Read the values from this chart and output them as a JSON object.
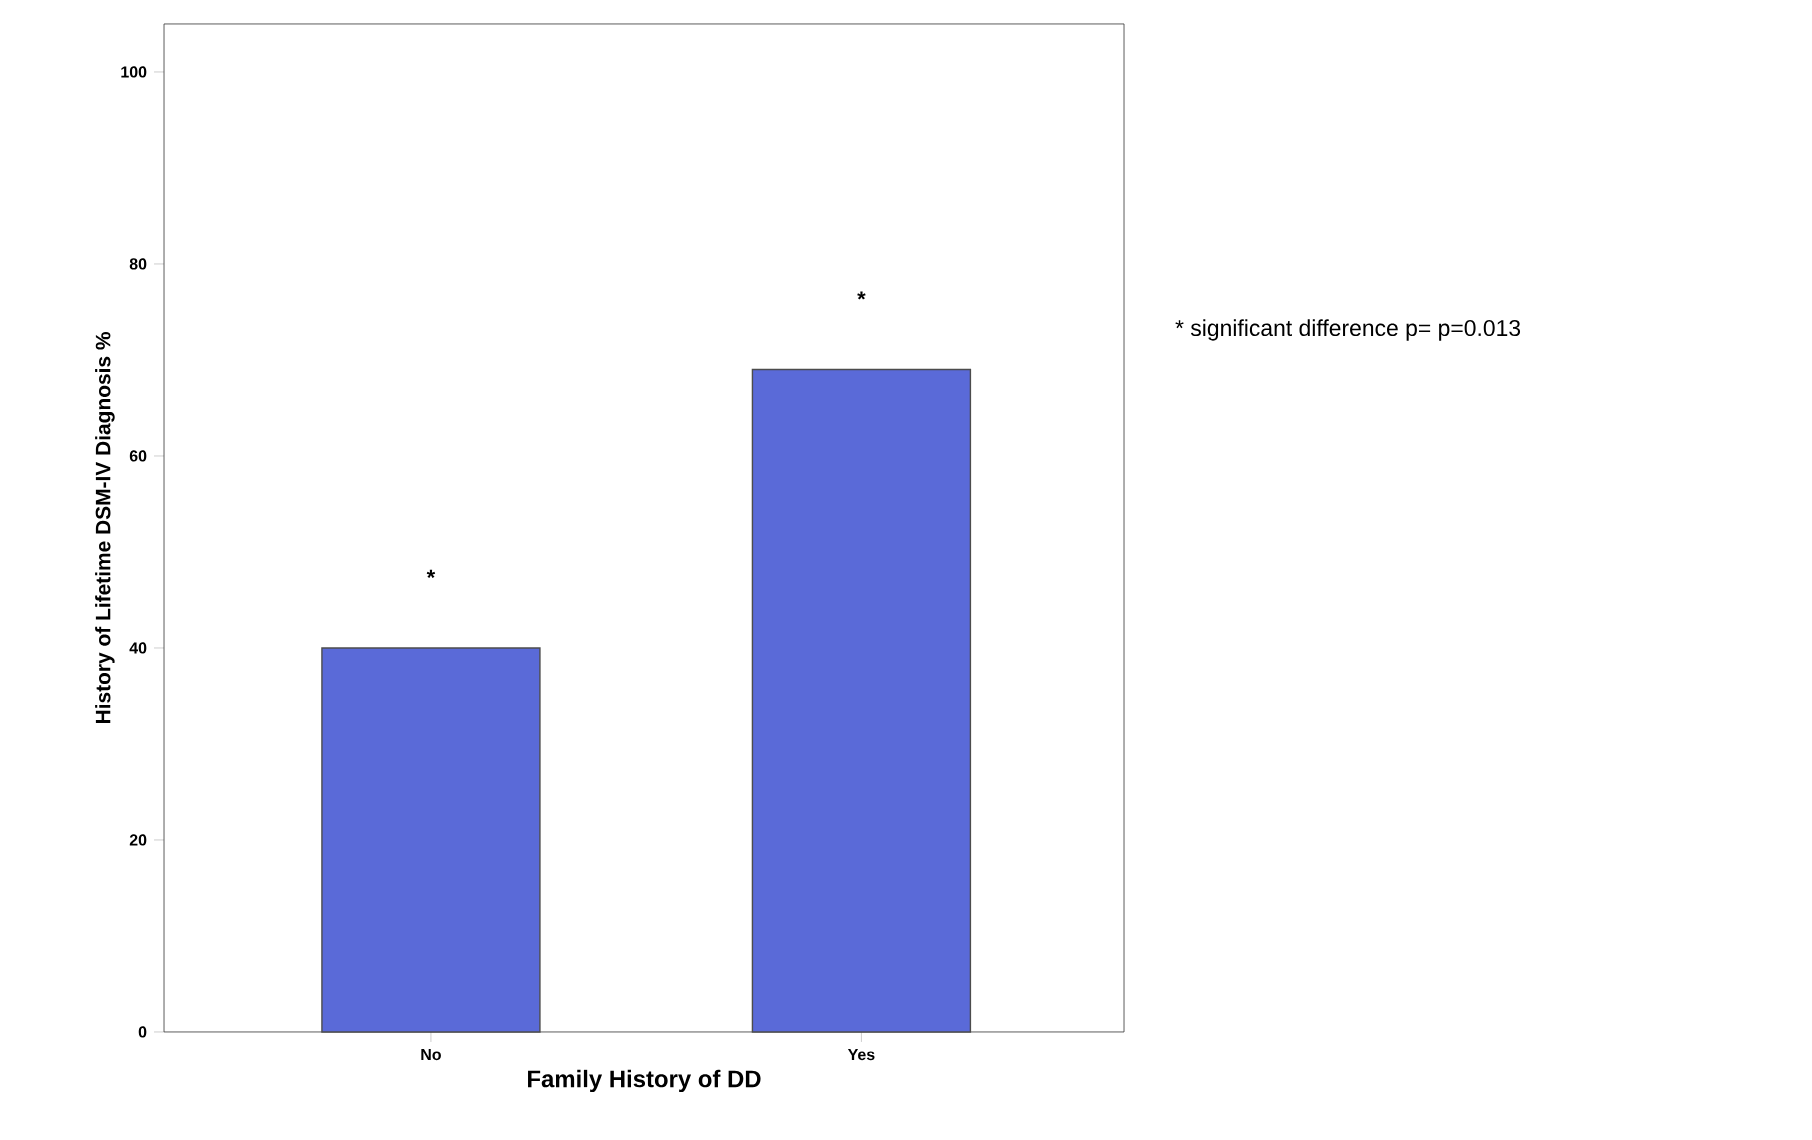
{
  "chart_data": {
    "type": "bar",
    "xlabel": "Family History of DD",
    "ylabel": "History of Lifetime DSM-IV Diagnosis %",
    "categories": [
      "No",
      "Yes"
    ],
    "values": [
      40,
      69
    ],
    "color": "#5a6ad8",
    "ylim": [
      0,
      105
    ],
    "yticks": [
      0,
      20,
      40,
      60,
      80,
      100
    ],
    "grid": false,
    "annotations": [
      "*",
      "*",
      "* significant difference p= p=0.013"
    ]
  }
}
